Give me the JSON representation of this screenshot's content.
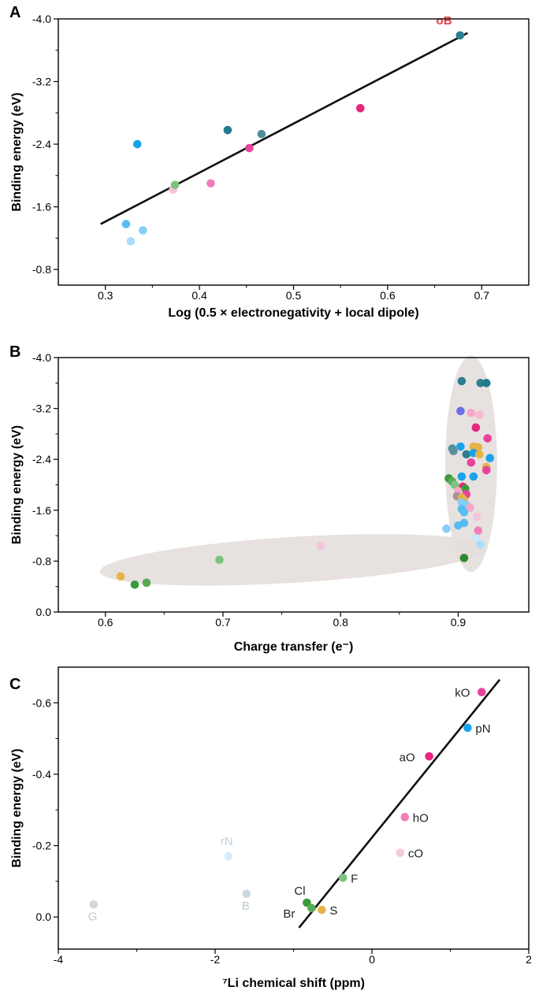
{
  "chart_data": [
    {
      "panel": "A",
      "type": "scatter",
      "xlabel": "Log (0.5 × electronegativity + local dipole)",
      "ylabel": "Binding energy (eV)",
      "xlim": [
        0.25,
        0.75
      ],
      "ylim": [
        -0.6,
        -4.0
      ],
      "xticks": [
        "0.3",
        "0.4",
        "0.5",
        "0.6",
        "0.7"
      ],
      "yticks": [
        "-4.0",
        "-3.2",
        "-2.4",
        "-1.6",
        "-0.8"
      ],
      "points": [
        {
          "x": 0.322,
          "y": -1.38,
          "color": "#56bdf2"
        },
        {
          "x": 0.327,
          "y": -1.16,
          "color": "#aaddf9"
        },
        {
          "x": 0.334,
          "y": -2.4,
          "color": "#1aa3ea"
        },
        {
          "x": 0.34,
          "y": -1.3,
          "color": "#86cef5"
        },
        {
          "x": 0.372,
          "y": -1.82,
          "color": "#f8c1d8"
        },
        {
          "x": 0.374,
          "y": -1.88,
          "color": "#7bc47f"
        },
        {
          "x": 0.412,
          "y": -1.9,
          "color": "#f27fb7"
        },
        {
          "x": 0.43,
          "y": -2.58,
          "color": "#1f7a8c"
        },
        {
          "x": 0.453,
          "y": -2.35,
          "color": "#e8439a"
        },
        {
          "x": 0.466,
          "y": -2.53,
          "color": "#4f8f9e"
        },
        {
          "x": 0.571,
          "y": -2.86,
          "color": "#e8267f"
        },
        {
          "x": 0.677,
          "y": -3.79,
          "color": "#2c7f8f"
        }
      ],
      "fit_line": {
        "x": [
          0.295,
          0.685
        ],
        "y": [
          -1.38,
          -3.82
        ]
      },
      "annotations": [
        {
          "text": "oB",
          "x": 0.66,
          "y": -3.93,
          "color": "#e8393f"
        }
      ]
    },
    {
      "panel": "B",
      "type": "scatter",
      "xlabel": "Charge transfer (e⁻)",
      "ylabel": "Binding energy (eV)",
      "xlim": [
        0.56,
        0.96
      ],
      "ylim": [
        0.0,
        -4.0
      ],
      "xticks": [
        "0.6",
        "0.7",
        "0.8",
        "0.9"
      ],
      "yticks": [
        "-4.0",
        "-3.2",
        "-2.4",
        "-1.6",
        "-0.8",
        "0.0"
      ],
      "points": [
        {
          "x": 0.613,
          "y": -0.56,
          "color": "#e6b34a"
        },
        {
          "x": 0.625,
          "y": -0.43,
          "color": "#3a9a3c"
        },
        {
          "x": 0.635,
          "y": -0.46,
          "color": "#59a957"
        },
        {
          "x": 0.697,
          "y": -0.82,
          "color": "#7bc47f"
        },
        {
          "x": 0.783,
          "y": -1.04,
          "color": "#f6c3dc"
        },
        {
          "x": 0.903,
          "y": -3.63,
          "color": "#2c7f8f"
        },
        {
          "x": 0.919,
          "y": -3.6,
          "color": "#2c7f8f"
        },
        {
          "x": 0.924,
          "y": -3.6,
          "color": "#1f7a8c"
        },
        {
          "x": 0.902,
          "y": -3.16,
          "color": "#6b6fe8"
        },
        {
          "x": 0.911,
          "y": -3.13,
          "color": "#f6a6c9"
        },
        {
          "x": 0.918,
          "y": -3.1,
          "color": "#f8b8d4"
        },
        {
          "x": 0.915,
          "y": -2.9,
          "color": "#e8267f"
        },
        {
          "x": 0.925,
          "y": -2.73,
          "color": "#e8439a"
        },
        {
          "x": 0.902,
          "y": -2.6,
          "color": "#1aa3ea"
        },
        {
          "x": 0.913,
          "y": -2.6,
          "color": "#e6b34a"
        },
        {
          "x": 0.917,
          "y": -2.59,
          "color": "#e6b34a"
        },
        {
          "x": 0.895,
          "y": -2.57,
          "color": "#4f8f9e"
        },
        {
          "x": 0.896,
          "y": -2.53,
          "color": "#5b8fa0"
        },
        {
          "x": 0.907,
          "y": -2.48,
          "color": "#2c7f8f"
        },
        {
          "x": 0.913,
          "y": -2.5,
          "color": "#1aa3ea"
        },
        {
          "x": 0.918,
          "y": -2.48,
          "color": "#e6b34a"
        },
        {
          "x": 0.927,
          "y": -2.42,
          "color": "#1aa3ea"
        },
        {
          "x": 0.911,
          "y": -2.35,
          "color": "#e8439a"
        },
        {
          "x": 0.924,
          "y": -2.28,
          "color": "#e6b34a"
        },
        {
          "x": 0.924,
          "y": -2.23,
          "color": "#e8439a"
        },
        {
          "x": 0.903,
          "y": -2.13,
          "color": "#1aa3ea"
        },
        {
          "x": 0.913,
          "y": -2.13,
          "color": "#1aa3ea"
        },
        {
          "x": 0.892,
          "y": -2.1,
          "color": "#3a9a3c"
        },
        {
          "x": 0.895,
          "y": -2.05,
          "color": "#59a957"
        },
        {
          "x": 0.897,
          "y": -2.0,
          "color": "#7bc47f"
        },
        {
          "x": 0.904,
          "y": -1.97,
          "color": "#e8267f"
        },
        {
          "x": 0.906,
          "y": -1.94,
          "color": "#3a9a3c"
        },
        {
          "x": 0.9,
          "y": -1.9,
          "color": "#f6a6c9"
        },
        {
          "x": 0.907,
          "y": -1.85,
          "color": "#e8439a"
        },
        {
          "x": 0.899,
          "y": -1.82,
          "color": "#a58fa0"
        },
        {
          "x": 0.903,
          "y": -1.8,
          "color": "#e6b34a"
        },
        {
          "x": 0.905,
          "y": -1.76,
          "color": "#e6b34a"
        },
        {
          "x": 0.903,
          "y": -1.72,
          "color": "#86cef5"
        },
        {
          "x": 0.907,
          "y": -1.68,
          "color": "#86cef5"
        },
        {
          "x": 0.91,
          "y": -1.64,
          "color": "#f6a6c9"
        },
        {
          "x": 0.903,
          "y": -1.62,
          "color": "#56bdf2"
        },
        {
          "x": 0.905,
          "y": -1.57,
          "color": "#56bdf2"
        },
        {
          "x": 0.916,
          "y": -1.5,
          "color": "#f6c3dc"
        },
        {
          "x": 0.905,
          "y": -1.4,
          "color": "#56bdf2"
        },
        {
          "x": 0.9,
          "y": -1.36,
          "color": "#56bdf2"
        },
        {
          "x": 0.89,
          "y": -1.31,
          "color": "#86cef5"
        },
        {
          "x": 0.917,
          "y": -1.28,
          "color": "#f27fb7"
        },
        {
          "x": 0.915,
          "y": -1.16,
          "color": "#c9e7f6"
        },
        {
          "x": 0.919,
          "y": -1.06,
          "color": "#aaddf9"
        },
        {
          "x": 0.905,
          "y": -0.85,
          "color": "#2f8a2f"
        }
      ],
      "shaded_regions": [
        {
          "shape": "ellipse",
          "cx": 0.76,
          "cy": -0.82,
          "rx": 0.165,
          "ry": 0.36,
          "angle_deg": -3.5
        },
        {
          "shape": "ellipse",
          "cx": 0.911,
          "cy": -2.33,
          "rx": 0.022,
          "ry": 1.7
        }
      ]
    },
    {
      "panel": "C",
      "type": "scatter",
      "xlabel": "⁷Li chemical shift (ppm)",
      "ylabel": "Binding energy (eV)",
      "xlim": [
        -4,
        2
      ],
      "ylim": [
        0.09,
        -0.7
      ],
      "xticks": [
        "-4",
        "-2",
        "0",
        "2"
      ],
      "yticks": [
        "-0.6",
        "-0.4",
        "-0.2",
        "0.0"
      ],
      "points": [
        {
          "x": 1.4,
          "y": -0.63,
          "color": "#e8439a",
          "label": "kO",
          "label_color": "#222222"
        },
        {
          "x": 1.22,
          "y": -0.53,
          "color": "#1aa3ea",
          "label": "pN",
          "label_color": "#222222"
        },
        {
          "x": 0.73,
          "y": -0.45,
          "color": "#e8267f",
          "label": "aO",
          "label_color": "#222222"
        },
        {
          "x": 0.42,
          "y": -0.28,
          "color": "#f27fb7",
          "label": "hO",
          "label_color": "#222222"
        },
        {
          "x": 0.36,
          "y": -0.18,
          "color": "#f8c9dc",
          "label": "cO",
          "label_color": "#222222"
        },
        {
          "x": -0.37,
          "y": -0.11,
          "color": "#7bc47f",
          "label": "F",
          "label_color": "#222222"
        },
        {
          "x": -0.83,
          "y": -0.04,
          "color": "#3a9a3c",
          "label": "Cl",
          "label_color": "#222222"
        },
        {
          "x": -0.77,
          "y": -0.025,
          "color": "#59a957",
          "label": "Br",
          "label_color": "#222222"
        },
        {
          "x": -0.64,
          "y": -0.02,
          "color": "#e6b34a",
          "label": "S",
          "label_color": "#222222"
        },
        {
          "x": -1.83,
          "y": -0.17,
          "color": "#d9ecfa",
          "label": "rN",
          "label_color": "#b9d4e4"
        },
        {
          "x": -1.6,
          "y": -0.065,
          "color": "#c9d9e2",
          "label": "B",
          "label_color": "#b9c9d2"
        },
        {
          "x": -3.55,
          "y": -0.035,
          "color": "#d6d6d6",
          "label": "G",
          "label_color": "#c6c6c6"
        }
      ],
      "fit_line": {
        "x": [
          -0.93,
          1.63
        ],
        "y": [
          0.03,
          -0.665
        ]
      }
    }
  ],
  "colors": {
    "fit_line": "#111111",
    "axis": "#111111",
    "shade": "#e4dfdb"
  }
}
